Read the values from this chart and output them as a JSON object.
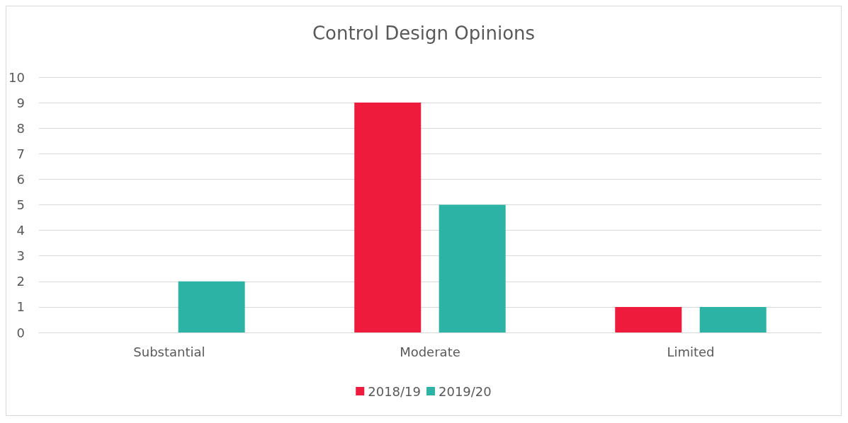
{
  "chart_data": {
    "type": "bar",
    "title": "Control Design Opinions",
    "categories": [
      "Substantial",
      "Moderate",
      "Limited"
    ],
    "series": [
      {
        "name": "2018/19",
        "color": "#ef1b3c",
        "values": [
          0,
          9,
          1
        ]
      },
      {
        "name": "2019/20",
        "color": "#2db3a6",
        "values": [
          2,
          5,
          1
        ]
      }
    ],
    "ylim": [
      0,
      10
    ],
    "yticks": [
      0,
      1,
      2,
      3,
      4,
      5,
      6,
      7,
      8,
      9,
      10
    ],
    "grid": "y",
    "legend": "bottom"
  }
}
